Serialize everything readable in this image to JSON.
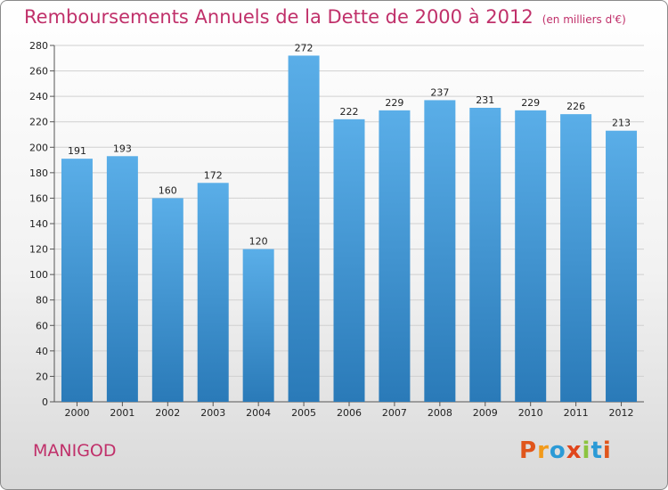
{
  "header": {
    "title": "Remboursements Annuels de la Dette de 2000 à 2012",
    "unit": "(en milliers d'€)"
  },
  "footer": {
    "commune": "MANIGOD",
    "logo_text": "Proxiti"
  },
  "colors": {
    "title": "#c0306a",
    "bar_top": "#5aaee8",
    "bar_bottom": "#2a7ab8",
    "grid": "#d0d0d0",
    "logo_letters": [
      "#e0551b",
      "#f29a1a",
      "#2b9ad6",
      "#e0451b",
      "#8cc43f",
      "#2b9ad6",
      "#e0551b"
    ]
  },
  "chart_data": {
    "type": "bar",
    "title": "Remboursements Annuels de la Dette de 2000 à 2012",
    "categories": [
      "2000",
      "2001",
      "2002",
      "2003",
      "2004",
      "2005",
      "2006",
      "2007",
      "2008",
      "2009",
      "2010",
      "2011",
      "2012"
    ],
    "values": [
      191,
      193,
      160,
      172,
      120,
      272,
      222,
      229,
      237,
      231,
      229,
      226,
      213
    ],
    "ylim": [
      0,
      280
    ],
    "yticks": [
      0,
      20,
      40,
      60,
      80,
      100,
      120,
      140,
      160,
      180,
      200,
      220,
      240,
      260,
      280
    ],
    "grid": true,
    "xlabel": "",
    "ylabel": ""
  }
}
